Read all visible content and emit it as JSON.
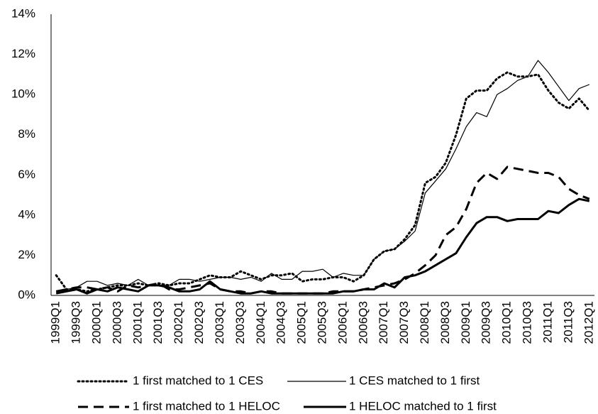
{
  "chart_data": {
    "type": "line",
    "categories": [
      "1999Q1",
      null,
      "1999Q3",
      null,
      "2000Q1",
      null,
      "2000Q3",
      null,
      "2001Q1",
      null,
      "2001Q3",
      null,
      "2002Q1",
      null,
      "2002Q3",
      null,
      "2003Q1",
      null,
      "2003Q3",
      null,
      "2004Q1",
      null,
      "2004Q3",
      null,
      "2005Q1",
      null,
      "2005Q3",
      null,
      "2006Q1",
      null,
      "2006Q3",
      null,
      "2007Q1",
      null,
      "2007Q3",
      null,
      "2008Q1",
      null,
      "2008Q3",
      null,
      "2009Q1",
      null,
      "2009Q3",
      null,
      "2010Q1",
      null,
      "2010Q3",
      null,
      "2011Q1",
      null,
      "2011Q3",
      null,
      "2012Q1"
    ],
    "series": [
      {
        "name": "1 first matched to 1 CES",
        "color": "#000000",
        "line_style": "dotted",
        "width": 3,
        "values": [
          1.0,
          0.3,
          0.3,
          0.2,
          0.3,
          0.4,
          0.5,
          0.5,
          0.6,
          0.5,
          0.6,
          0.5,
          0.6,
          0.6,
          0.8,
          1.0,
          0.9,
          0.9,
          1.2,
          1.0,
          0.8,
          1.0,
          1.0,
          1.1,
          0.7,
          0.8,
          0.8,
          0.9,
          0.9,
          0.7,
          1.0,
          1.8,
          2.2,
          2.3,
          2.8,
          3.5,
          5.6,
          5.9,
          6.6,
          8.0,
          9.8,
          10.2,
          10.2,
          10.8,
          11.1,
          10.9,
          10.9,
          11.0,
          10.2,
          9.6,
          9.3,
          9.8,
          9.2
        ]
      },
      {
        "name": "1 CES matched to 1 first",
        "color": "#000000",
        "line_style": "solid",
        "width": 1.2,
        "values": [
          0.2,
          0.3,
          0.4,
          0.7,
          0.7,
          0.5,
          0.6,
          0.5,
          0.8,
          0.5,
          0.5,
          0.5,
          0.8,
          0.8,
          0.7,
          0.8,
          0.9,
          0.9,
          0.8,
          0.9,
          0.7,
          1.1,
          0.8,
          0.8,
          1.2,
          1.2,
          1.3,
          0.9,
          1.1,
          1.0,
          1.0,
          1.8,
          2.2,
          2.3,
          2.7,
          3.2,
          5.1,
          5.7,
          6.3,
          7.3,
          8.4,
          9.1,
          8.9,
          10.0,
          10.3,
          10.7,
          10.9,
          11.7,
          11.1,
          10.4,
          9.7,
          10.3,
          10.5
        ]
      },
      {
        "name": "1 first matched to 1 HELOC",
        "color": "#000000",
        "line_style": "dashed",
        "width": 3,
        "values": [
          0.2,
          0.3,
          0.4,
          0.4,
          0.3,
          0.4,
          0.2,
          0.5,
          0.4,
          0.5,
          0.6,
          0.3,
          0.3,
          0.4,
          0.5,
          0.6,
          0.3,
          0.2,
          0.2,
          0.1,
          0.2,
          0.2,
          0.1,
          0.1,
          0.1,
          0.1,
          0.1,
          0.2,
          0.2,
          0.2,
          0.3,
          0.4,
          0.5,
          0.6,
          0.8,
          1.1,
          1.5,
          2.0,
          3.0,
          3.4,
          4.3,
          5.6,
          6.1,
          5.8,
          6.4,
          6.3,
          6.2,
          6.1,
          6.1,
          5.9,
          5.3,
          5.0,
          4.8
        ]
      },
      {
        "name": "1 HELOC matched to 1 first",
        "color": "#000000",
        "line_style": "solid",
        "width": 3,
        "values": [
          0.1,
          0.2,
          0.3,
          0.1,
          0.3,
          0.2,
          0.4,
          0.3,
          0.2,
          0.5,
          0.5,
          0.4,
          0.2,
          0.2,
          0.3,
          0.7,
          0.3,
          0.2,
          0.1,
          0.1,
          0.2,
          0.1,
          0.1,
          0.1,
          0.1,
          0.1,
          0.1,
          0.1,
          0.2,
          0.2,
          0.3,
          0.3,
          0.6,
          0.4,
          0.9,
          1.0,
          1.2,
          1.5,
          1.8,
          2.1,
          2.9,
          3.6,
          3.9,
          3.9,
          3.7,
          3.8,
          3.8,
          3.8,
          4.2,
          4.1,
          4.5,
          4.8,
          4.7
        ]
      }
    ],
    "ylim": [
      0,
      14
    ],
    "yticks": [
      {
        "value": 0,
        "label": "0%"
      },
      {
        "value": 2,
        "label": "2%"
      },
      {
        "value": 4,
        "label": "4%"
      },
      {
        "value": 6,
        "label": "6%"
      },
      {
        "value": 8,
        "label": "8%"
      },
      {
        "value": 10,
        "label": "10%"
      },
      {
        "value": 12,
        "label": "12%"
      },
      {
        "value": 14,
        "label": "14%"
      }
    ],
    "grid": false,
    "legend": "bottom"
  }
}
